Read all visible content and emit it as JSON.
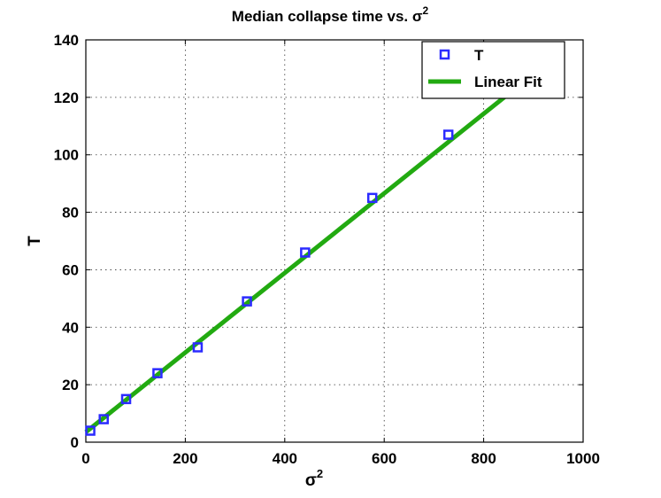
{
  "chart_data": {
    "type": "scatter",
    "title_text": "Median collapse time vs. σ",
    "title_sup": "2",
    "xlabel_text": "σ",
    "xlabel_sup": "2",
    "ylabel": "T",
    "xlim": [
      0,
      1000
    ],
    "ylim": [
      0,
      140
    ],
    "xticks": [
      "0",
      "200",
      "400",
      "600",
      "800",
      "1000"
    ],
    "yticks": [
      "0",
      "20",
      "40",
      "60",
      "80",
      "100",
      "120",
      "140"
    ],
    "grid": true,
    "legend_position": "top-right",
    "series": [
      {
        "name": "T",
        "marker": "square",
        "color": "#2b2bff",
        "x": [
          9,
          36,
          81,
          144,
          225,
          324,
          441,
          576,
          729
        ],
        "y": [
          4,
          8,
          15,
          24,
          33,
          49,
          66,
          85,
          107
        ]
      },
      {
        "name": "Linear Fit",
        "line": true,
        "color": "#22aa11",
        "x": [
          0,
          860
        ],
        "y": [
          3.5,
          122.6
        ]
      }
    ]
  }
}
